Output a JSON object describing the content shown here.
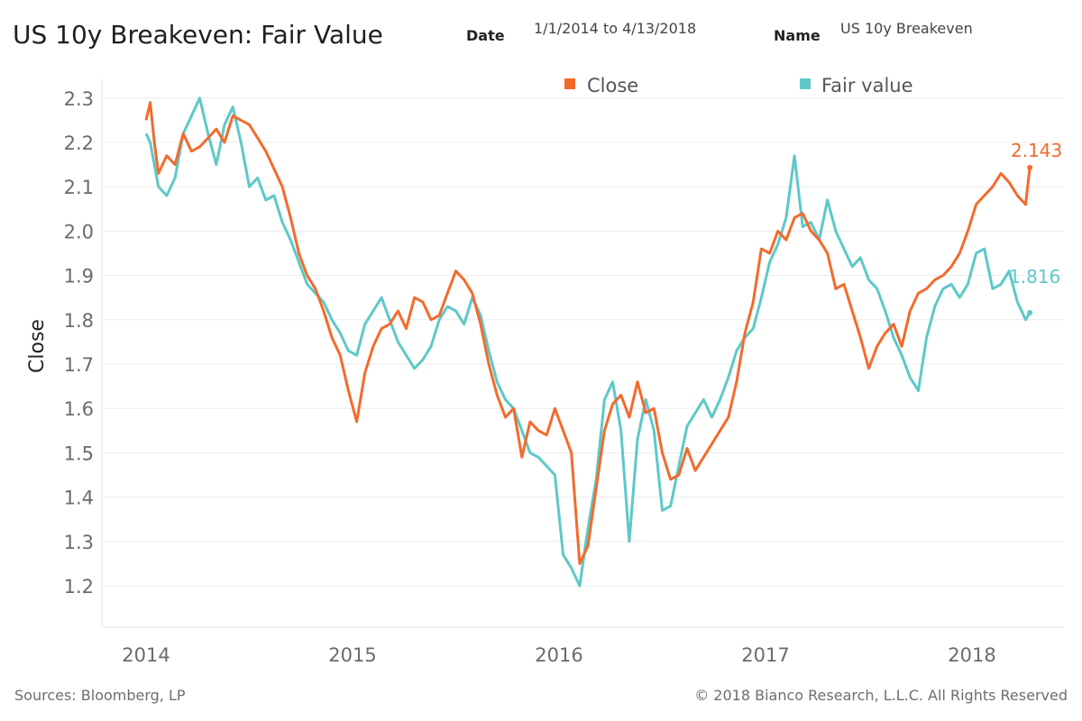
{
  "header": {
    "title": "US 10y Breakeven: Fair Value",
    "date_label": "Date",
    "date_value": "1/1/2014 to 4/13/2018",
    "name_label": "Name",
    "name_value": "US 10y Breakeven"
  },
  "footer": {
    "source": "Sources: Bloomberg, LP",
    "copyright": "© 2018 Bianco Research, L.L.C. All Rights Reserved"
  },
  "colors": {
    "close": "#f26b2d",
    "fair_value": "#5ec8c8",
    "grid": "#ececec"
  },
  "chart_data": {
    "type": "line",
    "title": "US 10y Breakeven: Fair Value",
    "ylabel": "Close",
    "xlabel": "",
    "xlim": [
      2014.0,
      2018.35
    ],
    "ylim": [
      1.13,
      2.33
    ],
    "x_ticks": [
      2014,
      2015,
      2016,
      2017,
      2018
    ],
    "y_ticks": [
      1.2,
      1.3,
      1.4,
      1.5,
      1.6,
      1.7,
      1.8,
      1.9,
      2.0,
      2.1,
      2.2,
      2.3
    ],
    "grid": "horizontal",
    "legend": "top",
    "end_labels": {
      "close": "2.143",
      "fair_value": "1.816"
    },
    "series": [
      {
        "name": "Close",
        "x": [
          2014.0,
          2014.02,
          2014.04,
          2014.06,
          2014.1,
          2014.14,
          2014.18,
          2014.22,
          2014.26,
          2014.3,
          2014.34,
          2014.38,
          2014.42,
          2014.46,
          2014.5,
          2014.54,
          2014.58,
          2014.62,
          2014.66,
          2014.7,
          2014.74,
          2014.78,
          2014.82,
          2014.86,
          2014.9,
          2014.94,
          2014.98,
          2015.02,
          2015.06,
          2015.1,
          2015.14,
          2015.18,
          2015.22,
          2015.26,
          2015.3,
          2015.34,
          2015.38,
          2015.42,
          2015.46,
          2015.5,
          2015.54,
          2015.58,
          2015.62,
          2015.66,
          2015.7,
          2015.74,
          2015.78,
          2015.82,
          2015.86,
          2015.9,
          2015.94,
          2015.98,
          2016.02,
          2016.06,
          2016.1,
          2016.14,
          2016.18,
          2016.22,
          2016.26,
          2016.3,
          2016.34,
          2016.38,
          2016.42,
          2016.46,
          2016.5,
          2016.54,
          2016.58,
          2016.62,
          2016.66,
          2016.7,
          2016.74,
          2016.78,
          2016.82,
          2016.86,
          2016.9,
          2016.94,
          2016.98,
          2017.02,
          2017.06,
          2017.1,
          2017.14,
          2017.18,
          2017.22,
          2017.26,
          2017.3,
          2017.34,
          2017.38,
          2017.42,
          2017.46,
          2017.5,
          2017.54,
          2017.58,
          2017.62,
          2017.66,
          2017.7,
          2017.74,
          2017.78,
          2017.82,
          2017.86,
          2017.9,
          2017.94,
          2017.98,
          2018.02,
          2018.06,
          2018.1,
          2018.14,
          2018.18,
          2018.22,
          2018.26,
          2018.28
        ],
        "y": [
          2.25,
          2.29,
          2.2,
          2.13,
          2.17,
          2.15,
          2.22,
          2.18,
          2.19,
          2.21,
          2.23,
          2.2,
          2.26,
          2.25,
          2.24,
          2.21,
          2.18,
          2.14,
          2.1,
          2.03,
          1.95,
          1.9,
          1.87,
          1.82,
          1.76,
          1.72,
          1.64,
          1.57,
          1.68,
          1.74,
          1.78,
          1.79,
          1.82,
          1.78,
          1.85,
          1.84,
          1.8,
          1.81,
          1.86,
          1.91,
          1.89,
          1.86,
          1.79,
          1.7,
          1.63,
          1.58,
          1.6,
          1.49,
          1.57,
          1.55,
          1.54,
          1.6,
          1.55,
          1.5,
          1.25,
          1.29,
          1.42,
          1.55,
          1.61,
          1.63,
          1.58,
          1.66,
          1.59,
          1.6,
          1.5,
          1.44,
          1.45,
          1.51,
          1.46,
          1.49,
          1.52,
          1.55,
          1.58,
          1.66,
          1.77,
          1.84,
          1.96,
          1.95,
          2.0,
          1.98,
          2.03,
          2.04,
          2.0,
          1.98,
          1.95,
          1.87,
          1.88,
          1.82,
          1.76,
          1.69,
          1.74,
          1.77,
          1.79,
          1.74,
          1.82,
          1.86,
          1.87,
          1.89,
          1.9,
          1.92,
          1.95,
          2.0,
          2.06,
          2.08,
          2.1,
          2.13,
          2.11,
          2.08,
          2.06,
          2.143
        ]
      },
      {
        "name": "Fair value",
        "x": [
          2014.0,
          2014.02,
          2014.04,
          2014.06,
          2014.1,
          2014.14,
          2014.18,
          2014.22,
          2014.26,
          2014.3,
          2014.34,
          2014.38,
          2014.42,
          2014.46,
          2014.5,
          2014.54,
          2014.58,
          2014.62,
          2014.66,
          2014.7,
          2014.74,
          2014.78,
          2014.82,
          2014.86,
          2014.9,
          2014.94,
          2014.98,
          2015.02,
          2015.06,
          2015.1,
          2015.14,
          2015.18,
          2015.22,
          2015.26,
          2015.3,
          2015.34,
          2015.38,
          2015.42,
          2015.46,
          2015.5,
          2015.54,
          2015.58,
          2015.62,
          2015.66,
          2015.7,
          2015.74,
          2015.78,
          2015.82,
          2015.86,
          2015.9,
          2015.94,
          2015.98,
          2016.02,
          2016.06,
          2016.1,
          2016.14,
          2016.18,
          2016.22,
          2016.26,
          2016.3,
          2016.34,
          2016.38,
          2016.42,
          2016.46,
          2016.5,
          2016.54,
          2016.58,
          2016.62,
          2016.66,
          2016.7,
          2016.74,
          2016.78,
          2016.82,
          2016.86,
          2016.9,
          2016.94,
          2016.98,
          2017.02,
          2017.06,
          2017.1,
          2017.14,
          2017.18,
          2017.22,
          2017.26,
          2017.3,
          2017.34,
          2017.38,
          2017.42,
          2017.46,
          2017.5,
          2017.54,
          2017.58,
          2017.62,
          2017.66,
          2017.7,
          2017.74,
          2017.78,
          2017.82,
          2017.86,
          2017.9,
          2017.94,
          2017.98,
          2018.02,
          2018.06,
          2018.1,
          2018.14,
          2018.18,
          2018.22,
          2018.26,
          2018.28
        ],
        "y": [
          2.22,
          2.2,
          2.15,
          2.1,
          2.08,
          2.12,
          2.22,
          2.26,
          2.3,
          2.22,
          2.15,
          2.24,
          2.28,
          2.2,
          2.1,
          2.12,
          2.07,
          2.08,
          2.02,
          1.98,
          1.93,
          1.88,
          1.86,
          1.84,
          1.8,
          1.77,
          1.73,
          1.72,
          1.79,
          1.82,
          1.85,
          1.8,
          1.75,
          1.72,
          1.69,
          1.71,
          1.74,
          1.8,
          1.83,
          1.82,
          1.79,
          1.85,
          1.81,
          1.73,
          1.66,
          1.62,
          1.6,
          1.55,
          1.5,
          1.49,
          1.47,
          1.45,
          1.27,
          1.24,
          1.2,
          1.33,
          1.44,
          1.62,
          1.66,
          1.55,
          1.3,
          1.53,
          1.62,
          1.55,
          1.37,
          1.38,
          1.47,
          1.56,
          1.59,
          1.62,
          1.58,
          1.62,
          1.67,
          1.73,
          1.76,
          1.78,
          1.85,
          1.93,
          1.97,
          2.03,
          2.17,
          2.01,
          2.02,
          1.98,
          2.07,
          2.0,
          1.96,
          1.92,
          1.94,
          1.89,
          1.87,
          1.82,
          1.76,
          1.72,
          1.67,
          1.64,
          1.76,
          1.83,
          1.87,
          1.88,
          1.85,
          1.88,
          1.95,
          1.96,
          1.87,
          1.88,
          1.91,
          1.84,
          1.8,
          1.816
        ]
      }
    ]
  }
}
